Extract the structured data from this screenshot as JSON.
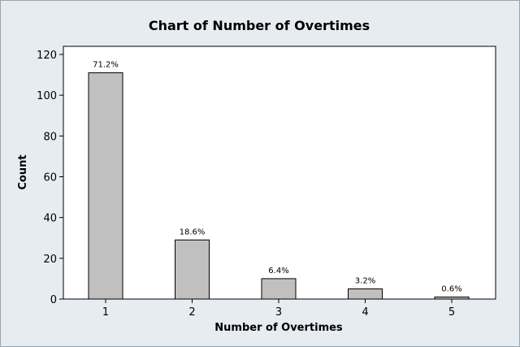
{
  "chart_data": {
    "type": "bar",
    "title": "Chart of Number of Overtimes",
    "xlabel": "Number of Overtimes",
    "ylabel": "Count",
    "categories": [
      "1",
      "2",
      "3",
      "4",
      "5"
    ],
    "values": [
      111,
      29,
      10,
      5,
      1
    ],
    "data_labels": [
      "71.2%",
      "18.6%",
      "6.4%",
      "3.2%",
      "0.6%"
    ],
    "ylim": [
      0,
      120
    ],
    "yticks": [
      0,
      20,
      40,
      60,
      80,
      100,
      120
    ],
    "grid": false,
    "colors": {
      "background": "#e7ecf1",
      "plot_area": "#ffffff",
      "bar_fill": "#c0c0c0",
      "bar_stroke": "#000000"
    }
  }
}
